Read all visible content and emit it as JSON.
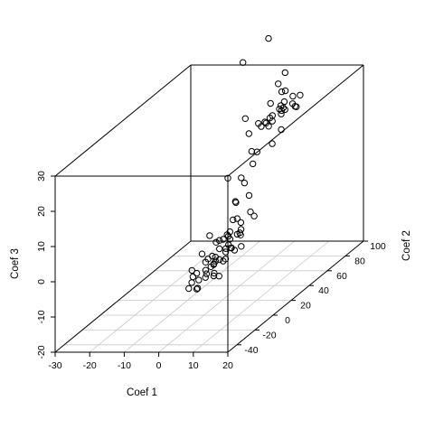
{
  "chart_data": {
    "type": "scatter",
    "subtype": "3d-scatter",
    "xlabel": "Coef 1",
    "ylabel": "Coef 2",
    "zlabel": "Coef 3",
    "xlim": [
      -30,
      20
    ],
    "ylim": [
      -50,
      100
    ],
    "zlim": [
      -20,
      30
    ],
    "x_ticks": [
      "-30",
      "-20",
      "-10",
      "0",
      "10",
      "20"
    ],
    "y_ticks": [
      "-40",
      "-20",
      "0",
      "20",
      "40",
      "60",
      "80",
      "100"
    ],
    "z_ticks": [
      "-20",
      "-10",
      "0",
      "10",
      "20",
      "30"
    ],
    "grid": true,
    "grid_plane": "floor",
    "box": true,
    "marker": "open-circle",
    "points": [
      {
        "x": 10.06,
        "y": -45.4,
        "z": -2.8
      },
      {
        "x": 8.34,
        "y": -39.9,
        "z": -4.2
      },
      {
        "x": 7.64,
        "y": -27.4,
        "z": 0.8
      },
      {
        "x": 13.69,
        "y": -35.6,
        "z": -1.4
      },
      {
        "x": 5.79,
        "y": -34.3,
        "z": -1.9
      },
      {
        "x": 11.46,
        "y": -26.8,
        "z": 1.4
      },
      {
        "x": 4.84,
        "y": -31.8,
        "z": -0.6
      },
      {
        "x": 12.29,
        "y": -35.6,
        "z": -0.6
      },
      {
        "x": 10.38,
        "y": -36.9,
        "z": -0.5
      },
      {
        "x": 9.68,
        "y": -26.3,
        "z": -0.1
      },
      {
        "x": 12.35,
        "y": -20.1,
        "z": 4.2
      },
      {
        "x": 8.66,
        "y": -23.9,
        "z": 1.8
      },
      {
        "x": 14.2,
        "y": -23.8,
        "z": 4.1
      },
      {
        "x": 10.7,
        "y": -30.0,
        "z": 0.9
      },
      {
        "x": 6.5,
        "y": -30.6,
        "z": -3.6
      },
      {
        "x": 10.38,
        "y": -10.1,
        "z": 1.2
      },
      {
        "x": 14.52,
        "y": -15.0,
        "z": 5.9
      },
      {
        "x": 9.23,
        "y": -33.7,
        "z": -2.2
      },
      {
        "x": 11.97,
        "y": -34.9,
        "z": -1.5
      },
      {
        "x": 8.02,
        "y": -28.7,
        "z": -1.2
      },
      {
        "x": 8.15,
        "y": -24.8,
        "z": 7.8
      },
      {
        "x": 13.12,
        "y": -16.3,
        "z": 1.9
      },
      {
        "x": 9.29,
        "y": -22.8,
        "z": 1.3
      },
      {
        "x": 11.02,
        "y": -15.2,
        "z": 5.6
      },
      {
        "x": 7.26,
        "y": -35.7,
        "z": -0.6
      },
      {
        "x": 13.06,
        "y": -28.7,
        "z": 1.4
      },
      {
        "x": 15.16,
        "y": -34.0,
        "z": 3.1
      },
      {
        "x": 12.35,
        "y": -21.6,
        "z": 7.4
      },
      {
        "x": 7.39,
        "y": -14.8,
        "z": 3.8
      },
      {
        "x": 11.02,
        "y": -25.1,
        "z": 6.5
      },
      {
        "x": 12.54,
        "y": -11.1,
        "z": 5.3
      },
      {
        "x": 12.42,
        "y": -23.2,
        "z": 3.8
      },
      {
        "x": 10.38,
        "y": -22.6,
        "z": 3.6
      },
      {
        "x": 12.42,
        "y": -18.6,
        "z": 5.5
      },
      {
        "x": 11.02,
        "y": -13.4,
        "z": 6.5
      },
      {
        "x": 15.61,
        "y": -18.4,
        "z": 3.4
      },
      {
        "x": 9.04,
        "y": -26.8,
        "z": -0.6
      },
      {
        "x": 11.53,
        "y": -31.2,
        "z": 1.9
      },
      {
        "x": 13.5,
        "y": -10.6,
        "z": 6.6
      },
      {
        "x": 14.26,
        "y": -13.7,
        "z": 9.2
      },
      {
        "x": 16.37,
        "y": -22.9,
        "z": 8.2
      },
      {
        "x": 17.07,
        "y": -9.7,
        "z": 10.2
      },
      {
        "x": 11.78,
        "y": -12.9,
        "z": 9.8
      },
      {
        "x": 15.03,
        "y": -6.0,
        "z": 10.6
      },
      {
        "x": 13.69,
        "y": -2.4,
        "z": 14.5
      },
      {
        "x": 14.71,
        "y": -19.5,
        "z": 11.5
      },
      {
        "x": 14.01,
        "y": -18.2,
        "z": 15.8
      },
      {
        "x": 12.86,
        "y": -14.4,
        "z": 15.3
      },
      {
        "x": 12.42,
        "y": -6.2,
        "z": 20.3
      },
      {
        "x": 11.53,
        "y": -17.6,
        "z": 22.6
      },
      {
        "x": 14.07,
        "y": 0.4,
        "z": 22.9
      },
      {
        "x": 14.45,
        "y": 13.5,
        "z": 31.7
      },
      {
        "x": 15.54,
        "y": -14.6,
        "z": 20.6
      },
      {
        "x": 11.02,
        "y": 29.3,
        "z": 52.4
      },
      {
        "x": 6.5,
        "y": 18.3,
        "z": 47.9
      },
      {
        "x": 18.02,
        "y": 13.3,
        "z": 42.9
      },
      {
        "x": 14.45,
        "y": -5.5,
        "z": 32.7
      },
      {
        "x": 18.66,
        "y": 18.4,
        "z": 45.0
      },
      {
        "x": 10.32,
        "y": 6.3,
        "z": 34.5
      },
      {
        "x": 12.03,
        "y": -24.6,
        "z": 6.7
      },
      {
        "x": 5.6,
        "y": -38.2,
        "z": -4.4
      },
      {
        "x": 10.83,
        "y": -17.4,
        "z": 1.6
      },
      {
        "x": 6.5,
        "y": -38.3,
        "z": -2.7
      },
      {
        "x": 7.07,
        "y": -29.1,
        "z": 3.5
      },
      {
        "x": 8.08,
        "y": -26.4,
        "z": 1.5
      },
      {
        "x": -2.22,
        "y": 98.5,
        "z": 23.0
      },
      {
        "x": -5.79,
        "y": 95.7,
        "z": 20.0
      },
      {
        "x": -5.1,
        "y": 86.8,
        "z": 16.6
      },
      {
        "x": -3.19,
        "y": 98.2,
        "z": 22.8
      },
      {
        "x": -1.6,
        "y": 91.5,
        "z": 17.9
      },
      {
        "x": 0.96,
        "y": 94.6,
        "z": 22.3
      },
      {
        "x": -7.2,
        "y": 87.7,
        "z": 16.0
      },
      {
        "x": -2.67,
        "y": 95.2,
        "z": 19.5
      },
      {
        "x": -1.66,
        "y": 94.0,
        "z": 19.1
      },
      {
        "x": -2.61,
        "y": 85.6,
        "z": 17.1
      },
      {
        "x": -5.86,
        "y": 75.2,
        "z": 10.7
      },
      {
        "x": -0.77,
        "y": 88.4,
        "z": 14.1
      },
      {
        "x": -6.05,
        "y": 86.4,
        "z": 15.4
      },
      {
        "x": 1.08,
        "y": 102.2,
        "z": 21.0
      },
      {
        "x": -1.53,
        "y": 81.3,
        "z": 11.6
      },
      {
        "x": -2.23,
        "y": 94.2,
        "z": 18.3
      },
      {
        "x": -1.27,
        "y": 94.5,
        "z": 18.5
      },
      {
        "x": 0.06,
        "y": 97.8,
        "z": 19.5
      },
      {
        "x": -3.75,
        "y": 85.8,
        "z": 15.6
      },
      {
        "x": 1.02,
        "y": 98.3,
        "z": 18.5
      },
      {
        "x": -4.77,
        "y": 76.9,
        "z": 10.2
      },
      {
        "x": -4.33,
        "y": 92.2,
        "z": 17.3
      },
      {
        "x": -4.33,
        "y": 89.4,
        "z": 17.2
      },
      {
        "x": -3.38,
        "y": 96.3,
        "z": 18.3
      },
      {
        "x": 0.57,
        "y": 98.5,
        "z": 18.6
      },
      {
        "x": -2.8,
        "y": 99.5,
        "z": 19.7
      }
    ]
  }
}
